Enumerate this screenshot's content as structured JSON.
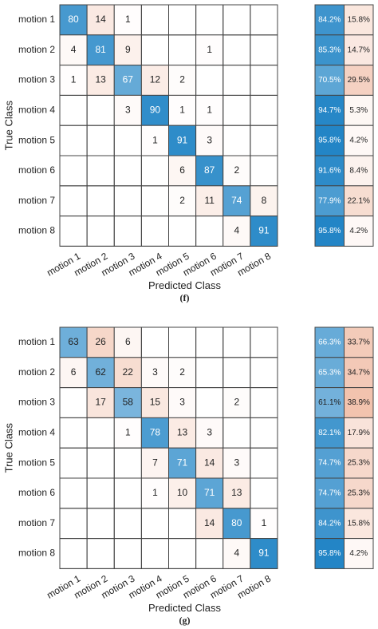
{
  "chart_data": [
    {
      "type": "heatmap",
      "xlabel": "Predicted Class",
      "ylabel": "True Class",
      "caption": "(f)",
      "categories": [
        "motion 1",
        "motion 2",
        "motion 3",
        "motion 4",
        "motion 5",
        "motion 6",
        "motion 7",
        "motion 8"
      ],
      "diagonal_color": "#0072bd",
      "off_diagonal_color": "#d95319",
      "values": [
        [
          80,
          14,
          1,
          null,
          null,
          null,
          null,
          null
        ],
        [
          4,
          81,
          9,
          null,
          null,
          1,
          null,
          null
        ],
        [
          1,
          13,
          67,
          12,
          2,
          null,
          null,
          null
        ],
        [
          null,
          null,
          3,
          90,
          1,
          1,
          null,
          null
        ],
        [
          null,
          null,
          null,
          1,
          91,
          3,
          null,
          null
        ],
        [
          null,
          null,
          null,
          null,
          6,
          87,
          2,
          null
        ],
        [
          null,
          null,
          null,
          null,
          2,
          11,
          74,
          8
        ],
        [
          null,
          null,
          null,
          null,
          null,
          null,
          4,
          91
        ]
      ],
      "row_summary": {
        "values": [
          [
            84.2,
            15.8
          ],
          [
            85.3,
            14.7
          ],
          [
            70.5,
            29.5
          ],
          [
            94.7,
            5.3
          ],
          [
            95.8,
            4.2
          ],
          [
            91.6,
            8.4
          ],
          [
            77.9,
            22.1
          ],
          [
            95.8,
            4.2
          ]
        ],
        "value_labels": [
          [
            "84.2%",
            "15.8%"
          ],
          [
            "85.3%",
            "14.7%"
          ],
          [
            "70.5%",
            "29.5%"
          ],
          [
            "94.7%",
            "5.3%"
          ],
          [
            "95.8%",
            "4.2%"
          ],
          [
            "91.6%",
            "8.4%"
          ],
          [
            "77.9%",
            "22.1%"
          ],
          [
            "95.8%",
            "4.2%"
          ]
        ]
      }
    },
    {
      "type": "heatmap",
      "xlabel": "Predicted Class",
      "ylabel": "True Class",
      "caption": "(g)",
      "categories": [
        "motion 1",
        "motion 2",
        "motion 3",
        "motion 4",
        "motion 5",
        "motion 6",
        "motion 7",
        "motion 8"
      ],
      "diagonal_color": "#0072bd",
      "off_diagonal_color": "#d95319",
      "values": [
        [
          63,
          26,
          6,
          null,
          null,
          null,
          null,
          null
        ],
        [
          6,
          62,
          22,
          3,
          2,
          null,
          null,
          null
        ],
        [
          null,
          17,
          58,
          15,
          3,
          null,
          2,
          null
        ],
        [
          null,
          null,
          1,
          78,
          13,
          3,
          null,
          null
        ],
        [
          null,
          null,
          null,
          7,
          71,
          14,
          3,
          null
        ],
        [
          null,
          null,
          null,
          1,
          10,
          71,
          13,
          null
        ],
        [
          null,
          null,
          null,
          null,
          null,
          14,
          80,
          1
        ],
        [
          null,
          null,
          null,
          null,
          null,
          null,
          4,
          91
        ]
      ],
      "row_summary": {
        "values": [
          [
            66.3,
            33.7
          ],
          [
            65.3,
            34.7
          ],
          [
            61.1,
            38.9
          ],
          [
            82.1,
            17.9
          ],
          [
            74.7,
            25.3
          ],
          [
            74.7,
            25.3
          ],
          [
            84.2,
            15.8
          ],
          [
            95.8,
            4.2
          ]
        ],
        "value_labels": [
          [
            "66.3%",
            "33.7%"
          ],
          [
            "65.3%",
            "34.7%"
          ],
          [
            "61.1%",
            "38.9%"
          ],
          [
            "82.1%",
            "17.9%"
          ],
          [
            "74.7%",
            "25.3%"
          ],
          [
            "74.7%",
            "25.3%"
          ],
          [
            "84.2%",
            "15.8%"
          ],
          [
            "95.8%",
            "4.2%"
          ]
        ]
      }
    }
  ]
}
